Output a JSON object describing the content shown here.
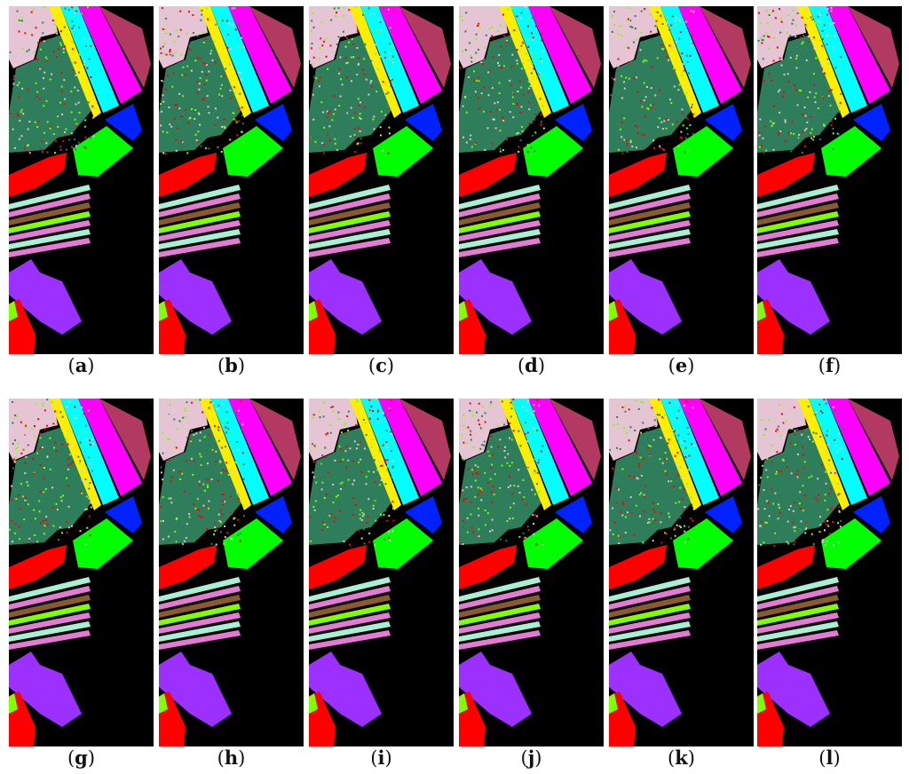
{
  "panels": [
    {
      "paren_open": "(",
      "letter": "a",
      "paren_close": ")"
    },
    {
      "paren_open": "(",
      "letter": "b",
      "paren_close": ")"
    },
    {
      "paren_open": "(",
      "letter": "c",
      "paren_close": ")"
    },
    {
      "paren_open": "(",
      "letter": "d",
      "paren_close": ")"
    },
    {
      "paren_open": "(",
      "letter": "e",
      "paren_close": ")"
    },
    {
      "paren_open": "(",
      "letter": "f",
      "paren_close": ")"
    },
    {
      "paren_open": "(",
      "letter": "g",
      "paren_close": ")"
    },
    {
      "paren_open": "(",
      "letter": "h",
      "paren_close": ")"
    },
    {
      "paren_open": "(",
      "letter": "i",
      "paren_close": ")"
    },
    {
      "paren_open": "(",
      "letter": "j",
      "paren_close": ")"
    },
    {
      "paren_open": "(",
      "letter": "k",
      "paren_close": ")"
    },
    {
      "paren_open": "(",
      "letter": "l",
      "paren_close": ")"
    }
  ],
  "colors": {
    "background": "#000000",
    "grapes": "#2e7d5b",
    "vineyard": "#e5c4d4",
    "celery": "#00ffff",
    "fallow_strip": "#ffee00",
    "stubble": "#ff00ff",
    "lettuce": "#b23a62",
    "broccoli": "#0022ff",
    "fallow_smooth": "#00ff00",
    "soil": "#ff0000",
    "corn": "#a6f0d6",
    "lettuce_4wk": "#e47ad3",
    "lettuce_5wk": "#8a5a2e",
    "lettuce_6wk": "#7fff00",
    "lettuce_7wk": "#9b30ff"
  }
}
